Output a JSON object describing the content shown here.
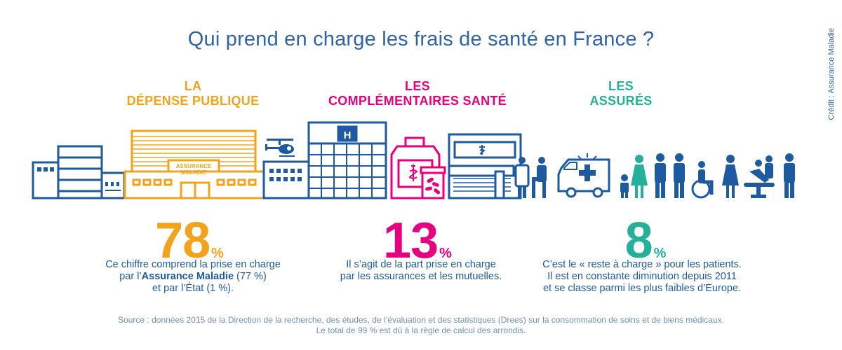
{
  "title": "Qui prend en charge les frais de santé en France ?",
  "credit": "Crédit : Assurance Maladie",
  "categories": [
    {
      "line1": "LA",
      "line2": "DÉPENSE PUBLIQUE",
      "color": "#f2a31b"
    },
    {
      "line1": "LES",
      "line2": "COMPLÉMENTAIRES SANTÉ",
      "color": "#e6007e"
    },
    {
      "line1": "LES",
      "line2": "ASSURÉS",
      "color": "#24b09a"
    }
  ],
  "scene": {
    "building_sign_line1": "ASSURANCE",
    "building_sign_line2": "MALADIE",
    "hospital_letter": "H",
    "icons": [
      "office-building-icon",
      "assurance-maladie-building-icon",
      "helicopter-icon",
      "hospital-icon",
      "medicine-bottle-icon",
      "pill-jar-icon",
      "pharmacy-icon",
      "doctor-icon",
      "ambulance-icon",
      "child-icon",
      "woman-icon",
      "man-icon",
      "wheelchair-icon",
      "dentist-chair-icon"
    ]
  },
  "stats": [
    {
      "value": "78",
      "unit": "%",
      "desc_line1": "Ce chiffre comprend la prise en charge",
      "desc_line2_pre": "par l’",
      "desc_line2_bold": "Assurance Maladie",
      "desc_line2_post": " (77 %)",
      "desc_line3": "et par l’État (1 %)."
    },
    {
      "value": "13",
      "unit": "%",
      "desc_line1": "Il s’agit de la part prise en charge",
      "desc_line2": "par les assurances et les mutuelles."
    },
    {
      "value": "8",
      "unit": "%",
      "desc_line1": "C’est le « reste à charge » pour les patients.",
      "desc_line2": "Il est en constante diminution depuis 2011",
      "desc_line3": "et se classe parmi les plus faibles d’Europe."
    }
  ],
  "source": {
    "line1": "Source : données 2015 de la Direction de la recherche, des études, de l’évaluation et des statistiques (Drees) sur la consommation de soins et de biens médicaux.",
    "line2": "Le total de 99 % est dû à la règle de calcul des arrondis."
  }
}
